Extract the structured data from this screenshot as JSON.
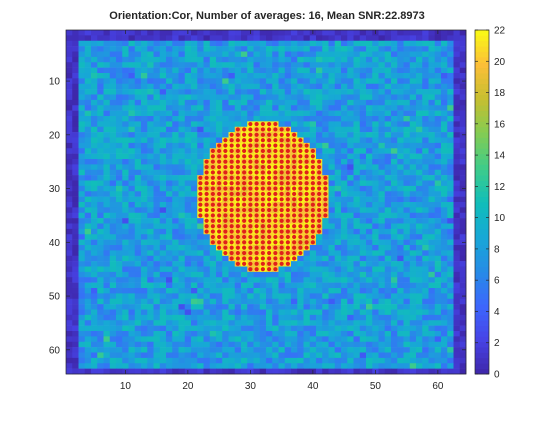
{
  "chart_data": {
    "type": "heatmap",
    "title": "Orientation:Cor, Number of averages: 16, Mean SNR:22.8973",
    "xlabel": "",
    "ylabel": "",
    "grid_size": [
      64,
      64
    ],
    "x_range": [
      0.5,
      64.5
    ],
    "y_range": [
      0.5,
      64.5
    ],
    "y_direction": "reversed",
    "x_ticks": [
      10,
      20,
      30,
      40,
      50,
      60
    ],
    "y_ticks": [
      10,
      20,
      30,
      40,
      50,
      60
    ],
    "colorbar": {
      "colormap": "parula",
      "range": [
        0,
        22
      ],
      "ticks": [
        0,
        2,
        4,
        6,
        8,
        10,
        12,
        14,
        16,
        18,
        20,
        22
      ],
      "location": "right"
    },
    "background_region": {
      "description": "dark blue border rows/columns outside the phantom",
      "value_range": [
        0,
        2
      ]
    },
    "phantom_region": {
      "shape": "rectangle",
      "x_extent": [
        3,
        62
      ],
      "y_extent": [
        3,
        63
      ],
      "typical_value": 8,
      "value_range": [
        3,
        13
      ]
    },
    "high_snr_region": {
      "shape": "ellipse",
      "center": [
        32,
        31.5
      ],
      "radius_x": 10.5,
      "radius_y": 14,
      "typical_value": 21,
      "value_range": [
        19,
        22
      ]
    },
    "markers": {
      "color": "#e0201b",
      "description": "red dots on every pixel of the high SNR region",
      "region": "high_snr_region"
    }
  }
}
